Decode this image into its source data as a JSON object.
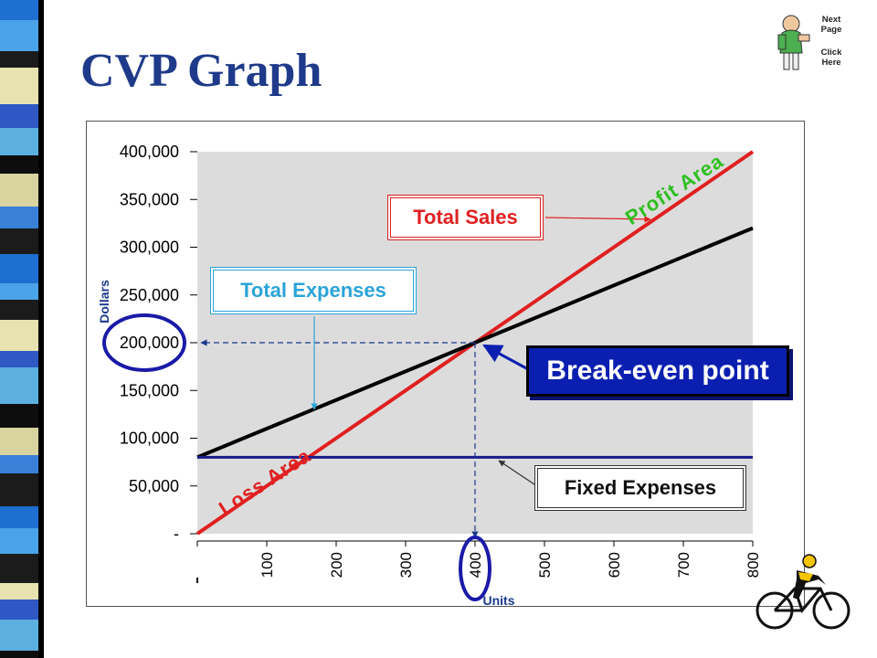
{
  "slide": {
    "title": "CVP Graph",
    "next_page": {
      "line1": "Next",
      "line2": "Page",
      "line3": "Click",
      "line4": "Here"
    }
  },
  "callouts": {
    "total_sales": "Total Sales",
    "total_expenses": "Total Expenses",
    "break_even": "Break-even point",
    "fixed_expenses": "Fixed Expenses",
    "profit_area": "Profit Area",
    "loss_area": "Loss Area"
  },
  "colors": {
    "title": "#1f3a8a",
    "plot_bg": "#dcdcdc",
    "sales_line": "#e02020",
    "expenses_line": "#000000",
    "fixed_line": "#1a1a8c",
    "break_even_box": "#0a1fb0",
    "profit_label": "#2dbf1f",
    "highlight_circle": "#1a1aa8"
  },
  "chart_data": {
    "type": "line",
    "xlabel": "Units",
    "ylabel": "Dollars",
    "xlim": [
      0,
      800
    ],
    "ylim": [
      0,
      400000
    ],
    "x_ticks": [
      "",
      "100",
      "200",
      "300",
      "400",
      "500",
      "600",
      "700",
      "800"
    ],
    "y_ticks": [
      "-",
      "50,000",
      "100,000",
      "150,000",
      "200,000",
      "250,000",
      "300,000",
      "350,000",
      "400,000"
    ],
    "grid": false,
    "series": [
      {
        "name": "Total Sales",
        "x": [
          0,
          800
        ],
        "values": [
          0,
          400000
        ]
      },
      {
        "name": "Total Expenses",
        "x": [
          0,
          800
        ],
        "values": [
          80000,
          320000
        ]
      },
      {
        "name": "Fixed Expenses",
        "x": [
          0,
          800
        ],
        "values": [
          80000,
          80000
        ]
      }
    ],
    "break_even": {
      "units": 400,
      "dollars": 200000
    },
    "highlighted_x_tick": "400",
    "highlighted_y_tick": "200,000"
  }
}
